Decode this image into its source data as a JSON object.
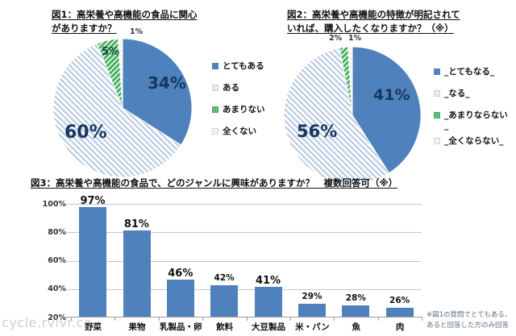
{
  "watermark": "cycle.rvlvr.co",
  "figure1": {
    "title_line1": "図1：高栄養や高機能の食品に関心",
    "title_line2": "がありますか？",
    "slice_labels": [
      "34%",
      "60%",
      "5%",
      "1%"
    ],
    "legend": [
      "とてもある",
      "ある",
      "あまりない",
      "全くない"
    ]
  },
  "figure2": {
    "title_line1": "図2：高栄養や高機能の特徴が明記されて",
    "title_line2": "いれば、購入したくなりますか？（※）",
    "slice_labels": [
      "41%",
      "56%",
      "2%",
      "1%"
    ],
    "legend": [
      "_とてもなる_",
      "_なる_",
      "_あまりならない\n_",
      "_全くならない_"
    ]
  },
  "figure3": {
    "title": "図3：高栄養や高機能の食品で、どのジャンルに興味がありますか？　複数回答可（※）",
    "value_labels": [
      "97%",
      "81%",
      "46%",
      "42%",
      "41%",
      "29%",
      "28%",
      "26%"
    ],
    "note_line1": "※図1の質問でとてもある、",
    "note_line2": "あると回答した方のみ回答"
  },
  "colors": {
    "bar_blue": "#4f81bd",
    "stripe_blue": "#b7c9e1",
    "green": "#44b05f",
    "pale_stripe": "#dfe8c4",
    "label_navy": "#17375e",
    "gridline": "#c6c6c6"
  },
  "chart_data": [
    {
      "type": "pie",
      "title": "図1：高栄養や高機能の食品に関心がありますか？",
      "labels": [
        "とてもある",
        "ある",
        "あまりない",
        "全くない"
      ],
      "values": [
        34,
        60,
        5,
        1
      ],
      "legend_position": "right"
    },
    {
      "type": "pie",
      "title": "図2：高栄養や高機能の特徴が明記されていれば、購入したくなりますか？（※）",
      "labels": [
        "_とてもなる_",
        "_なる_",
        "_あまりならない_",
        "_全くならない_"
      ],
      "values": [
        41,
        56,
        2,
        1
      ],
      "legend_position": "right"
    },
    {
      "type": "bar",
      "title": "図3：高栄養や高機能の食品で、どのジャンルに興味がありますか？　複数回答可（※）",
      "categories": [
        "野菜",
        "果物",
        "乳製品・卵",
        "飲料",
        "大豆製品",
        "米・パン",
        "魚",
        "肉"
      ],
      "values": [
        97,
        81,
        46,
        42,
        41,
        29,
        28,
        26
      ],
      "xlabel": "",
      "ylabel": "",
      "ylim": [
        20,
        100
      ],
      "yticks": [
        "100%",
        "80%",
        "60%",
        "40%",
        "20%"
      ],
      "grid": true
    }
  ]
}
